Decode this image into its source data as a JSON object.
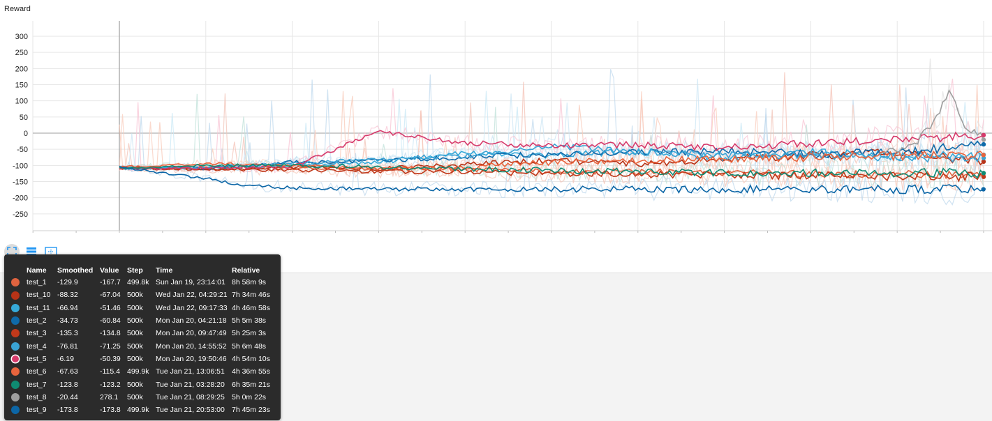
{
  "title": "Reward",
  "toolbar": {
    "buttons": [
      {
        "name": "fit-domain-icon",
        "label": ""
      },
      {
        "name": "toggle-log-icon",
        "label": ""
      },
      {
        "name": "toggle-data-download-icon",
        "label": ""
      }
    ]
  },
  "tooltip": {
    "headers": [
      "Name",
      "Smoothed",
      "Value",
      "Step",
      "Time",
      "Relative"
    ],
    "rows": [
      {
        "color": "#e0633f",
        "name": "test_1",
        "smoothed": "-129.9",
        "value": "-167.7",
        "step": "499.8k",
        "time": "Sun Jan 19, 23:14:01",
        "relative": "8h 58m 9s"
      },
      {
        "color": "#b83317",
        "name": "test_10",
        "smoothed": "-88.32",
        "value": "-67.04",
        "step": "500k",
        "time": "Wed Jan 22, 04:29:21",
        "relative": "7h 34m 46s"
      },
      {
        "color": "#36a9d9",
        "name": "test_11",
        "smoothed": "-66.94",
        "value": "-51.46",
        "step": "500k",
        "time": "Wed Jan 22, 09:17:33",
        "relative": "4h 46m 58s"
      },
      {
        "color": "#0f6aa9",
        "name": "test_2",
        "smoothed": "-34.73",
        "value": "-60.84",
        "step": "500k",
        "time": "Mon Jan 20, 04:21:18",
        "relative": "5h 5m 38s"
      },
      {
        "color": "#c0391b",
        "name": "test_3",
        "smoothed": "-135.3",
        "value": "-134.8",
        "step": "500k",
        "time": "Mon Jan 20, 09:47:49",
        "relative": "5h 25m 3s"
      },
      {
        "color": "#3aa3d4",
        "name": "test_4",
        "smoothed": "-76.81",
        "value": "-71.25",
        "step": "500k",
        "time": "Mon Jan 20, 14:55:52",
        "relative": "5h 6m 48s"
      },
      {
        "color": "#d63a6b",
        "name": "test_5",
        "smoothed": "-6.19",
        "value": "-50.39",
        "step": "500k",
        "time": "Mon Jan 20, 19:50:46",
        "relative": "4h 54m 10s",
        "selected": true
      },
      {
        "color": "#e8643d",
        "name": "test_6",
        "smoothed": "-67.63",
        "value": "-115.4",
        "step": "499.9k",
        "time": "Tue Jan 21, 13:06:51",
        "relative": "4h 36m 55s"
      },
      {
        "color": "#0f8a72",
        "name": "test_7",
        "smoothed": "-123.8",
        "value": "-123.2",
        "step": "500k",
        "time": "Tue Jan 21, 03:28:20",
        "relative": "6h 35m 21s"
      },
      {
        "color": "#9e9e9e",
        "name": "test_8",
        "smoothed": "-20.44",
        "value": "278.1",
        "step": "500k",
        "time": "Tue Jan 21, 08:29:25",
        "relative": "5h 0m 22s"
      },
      {
        "color": "#0c66a6",
        "name": "test_9",
        "smoothed": "-173.8",
        "value": "-173.8",
        "step": "499.9k",
        "time": "Tue Jan 21, 20:53:00",
        "relative": "7h 45m 23s"
      }
    ]
  },
  "chart_data": {
    "type": "line",
    "title": "Reward",
    "xlabel": "",
    "ylabel": "",
    "ylim": [
      -275,
      320
    ],
    "yticks": [
      300,
      250,
      200,
      150,
      100,
      50,
      0,
      -50,
      -100,
      -150,
      -200,
      -250
    ],
    "xlim": [
      -50000,
      510000
    ],
    "grid": true,
    "series": [
      {
        "name": "test_1",
        "color": "#e0633f",
        "raw_color": "#f8c9b8",
        "x": [
          0,
          50000,
          100000,
          150000,
          200000,
          250000,
          300000,
          350000,
          400000,
          450000,
          499800
        ],
        "y": [
          -110,
          -105,
          -108,
          -110,
          -112,
          -118,
          -120,
          -122,
          -125,
          -127,
          -129.9
        ]
      },
      {
        "name": "test_10",
        "color": "#b83317",
        "raw_color": "#f4c2b5",
        "x": [
          0,
          50000,
          100000,
          150000,
          200000,
          250000,
          300000,
          350000,
          400000,
          450000,
          500000
        ],
        "y": [
          -110,
          -112,
          -105,
          -110,
          -98,
          -85,
          -95,
          -80,
          -70,
          -60,
          -88.32
        ]
      },
      {
        "name": "test_11",
        "color": "#36a9d9",
        "raw_color": "#c9e8f6",
        "x": [
          0,
          50000,
          100000,
          150000,
          200000,
          250000,
          300000,
          350000,
          400000,
          450000,
          500000
        ],
        "y": [
          -110,
          -108,
          -100,
          -90,
          -60,
          -70,
          -55,
          -75,
          -60,
          -70,
          -66.94
        ]
      },
      {
        "name": "test_2",
        "color": "#0f6aa9",
        "raw_color": "#c0daee",
        "x": [
          0,
          50000,
          100000,
          150000,
          200000,
          250000,
          300000,
          350000,
          400000,
          450000,
          500000
        ],
        "y": [
          -105,
          -110,
          -90,
          -85,
          -75,
          -65,
          -60,
          -55,
          -65,
          -60,
          -34.73
        ]
      },
      {
        "name": "test_3",
        "color": "#c0391b",
        "raw_color": "#f2c4b8",
        "x": [
          0,
          50000,
          100000,
          150000,
          200000,
          250000,
          300000,
          350000,
          400000,
          450000,
          500000
        ],
        "y": [
          -108,
          -112,
          -115,
          -118,
          -120,
          -125,
          -128,
          -130,
          -132,
          -134,
          -135.3
        ]
      },
      {
        "name": "test_4",
        "color": "#3aa3d4",
        "raw_color": "#cce6f4",
        "x": [
          0,
          50000,
          100000,
          150000,
          200000,
          250000,
          300000,
          350000,
          400000,
          450000,
          500000
        ],
        "y": [
          -110,
          -105,
          -95,
          -80,
          -70,
          -40,
          -60,
          -65,
          -70,
          -75,
          -76.81
        ]
      },
      {
        "name": "test_5",
        "color": "#d63a6b",
        "raw_color": "#f8c4d4",
        "x": [
          0,
          50000,
          100000,
          150000,
          200000,
          250000,
          300000,
          350000,
          400000,
          450000,
          500000
        ],
        "y": [
          -110,
          -108,
          -105,
          5,
          -30,
          -40,
          -35,
          -45,
          -30,
          -20,
          -6.19
        ]
      },
      {
        "name": "test_6",
        "color": "#e8643d",
        "raw_color": "#f9cdbd",
        "x": [
          0,
          50000,
          100000,
          150000,
          200000,
          250000,
          300000,
          350000,
          400000,
          450000,
          499900
        ],
        "y": [
          -105,
          -95,
          -100,
          -110,
          -105,
          -90,
          -85,
          -80,
          -75,
          -70,
          -67.63
        ]
      },
      {
        "name": "test_7",
        "color": "#0f8a72",
        "raw_color": "#c0e2da",
        "x": [
          0,
          50000,
          100000,
          150000,
          200000,
          250000,
          300000,
          350000,
          400000,
          450000,
          500000
        ],
        "y": [
          -108,
          -100,
          -100,
          -105,
          -110,
          -115,
          -120,
          -122,
          -123,
          -123.5,
          -123.8
        ]
      },
      {
        "name": "test_8",
        "color": "#9e9e9e",
        "raw_color": "#e2e2e2",
        "x": [
          440000,
          460000,
          470000,
          480000,
          490000,
          500000
        ],
        "y": [
          -60,
          -40,
          30,
          120,
          20,
          -20.44
        ]
      },
      {
        "name": "test_9",
        "color": "#0c66a6",
        "raw_color": "#bfd8ec",
        "x": [
          0,
          20000,
          50000,
          70000,
          100000,
          150000,
          200000,
          300000,
          400000,
          499900
        ],
        "y": [
          -105,
          -120,
          -140,
          -160,
          -170,
          -173,
          -173.5,
          -173.8,
          -173.8,
          -173.8
        ]
      }
    ]
  }
}
